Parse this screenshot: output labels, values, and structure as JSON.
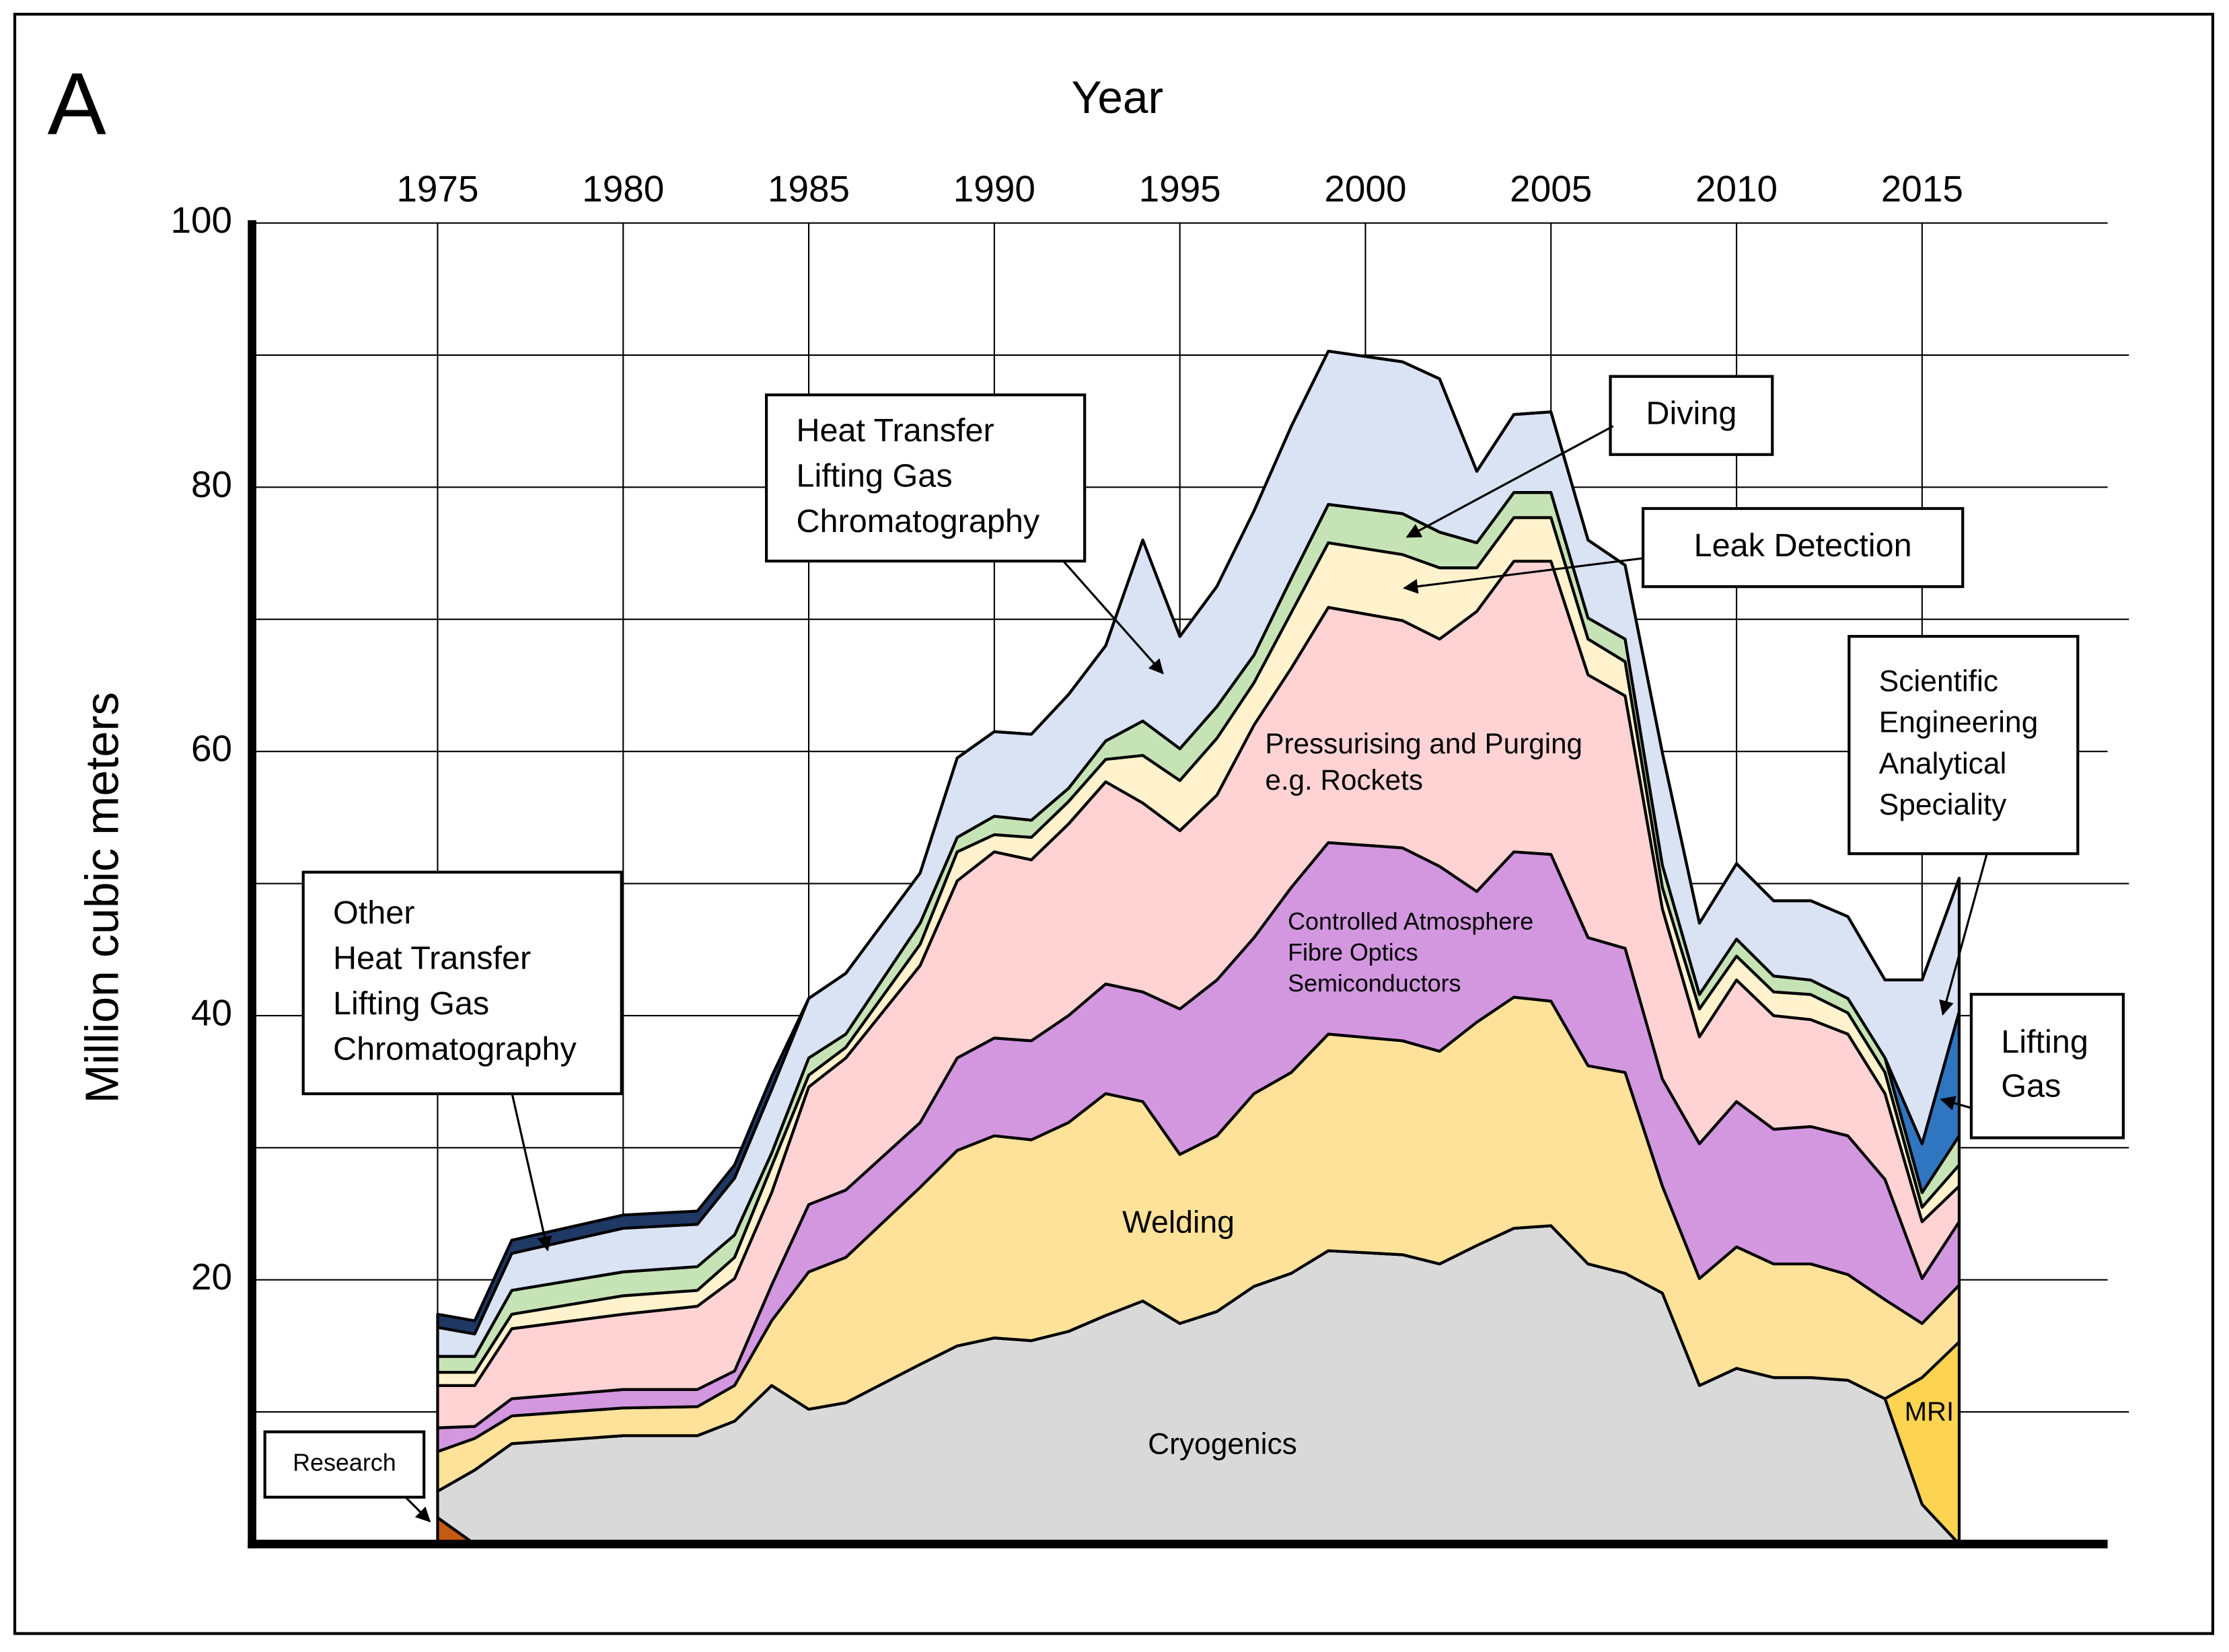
{
  "chart_data": {
    "type": "stacked_area",
    "panel_label": "A",
    "x_label": "Year",
    "y_label": "Million cubic meters",
    "x": [
      1975,
      1976,
      1977,
      1980,
      1982,
      1983,
      1984,
      1985,
      1986,
      1988,
      1989,
      1990,
      1991,
      1992,
      1993,
      1994,
      1995,
      1996,
      1997,
      1998,
      1999,
      2001,
      2002,
      2003,
      2004,
      2005,
      2006,
      2007,
      2008,
      2009,
      2010,
      2011,
      2012,
      2013,
      2014,
      2015,
      2016
    ],
    "xlim": [
      1970,
      2020
    ],
    "xticks": [
      1975,
      1980,
      1985,
      1990,
      1995,
      2000,
      2005,
      2010,
      2015
    ],
    "ylim": [
      0,
      100
    ],
    "yticks": [
      20,
      40,
      60,
      80,
      100
    ],
    "yminor_ticks": [
      10,
      30,
      50,
      70,
      90
    ],
    "grid": true,
    "series": [
      {
        "color": "#c55a11",
        "values": [
          2,
          0,
          0,
          0,
          0,
          0,
          0,
          0,
          0,
          0,
          0,
          0,
          0,
          0,
          0,
          0,
          0,
          0,
          0,
          0,
          0,
          0,
          0,
          0,
          0,
          0,
          0,
          0,
          0,
          0,
          0,
          0,
          0,
          0,
          0,
          0,
          0
        ]
      },
      {
        "color": "#d9d9d9",
        "label": [
          "Cryogenics"
        ],
        "values": [
          2,
          5.6,
          7.6,
          8.2,
          8.2,
          9.3,
          12,
          10.2,
          10.7,
          13.6,
          15,
          15.6,
          15.4,
          16.1,
          17.3,
          18.4,
          16.7,
          17.6,
          19.5,
          20.5,
          22.2,
          21.9,
          21.2,
          22.6,
          23.9,
          24.1,
          21.2,
          20.5,
          19,
          12,
          13.3,
          12.6,
          12.6,
          12.4,
          11,
          3,
          0
        ]
      },
      {
        "color": "#fcd451",
        "label": [
          "MRI"
        ],
        "values": [
          0,
          0,
          0,
          0,
          0,
          0,
          0,
          0,
          0,
          0,
          0,
          0,
          0,
          0,
          0,
          0,
          0,
          0,
          0,
          0,
          0,
          0,
          0,
          0,
          0,
          0,
          0,
          0,
          0,
          0,
          0,
          0,
          0,
          0,
          0,
          9.6,
          15.3
        ]
      },
      {
        "color": "#ffe29a",
        "label": [
          "Welding"
        ],
        "values": [
          3,
          2.4,
          2.1,
          2.1,
          2.2,
          2.7,
          4.9,
          10.4,
          11,
          13.4,
          14.8,
          15.3,
          15.2,
          15.8,
          16.8,
          15.1,
          12.8,
          13.3,
          14.6,
          15.2,
          16.4,
          16.2,
          16.1,
          16.9,
          17.5,
          17,
          15,
          15.2,
          8.1,
          8.1,
          9.2,
          8.6,
          8.6,
          8,
          7.5,
          4.1,
          4.3
        ]
      },
      {
        "color": "#d397e0",
        "label": [
          "Controlled Atmosphere",
          "Fibre Optics",
          "Semiconductors"
        ],
        "values": [
          1.8,
          0.9,
          1.3,
          1.4,
          1.3,
          1.1,
          2.7,
          5.1,
          5.1,
          4.9,
          7,
          7.4,
          7.5,
          8.1,
          8.3,
          8.3,
          11,
          11.8,
          11.8,
          14,
          14.5,
          14.6,
          14,
          9.9,
          11,
          11.1,
          9.7,
          9.4,
          8.1,
          10.2,
          11,
          10.2,
          10.4,
          10.5,
          9.1,
          3.4,
          4.8
        ]
      },
      {
        "color": "#ffd3d3",
        "label": [
          "Pressurising and Purging",
          "e.g. Rockets"
        ],
        "values": [
          3.2,
          3.1,
          5.3,
          5.7,
          6.3,
          7,
          7,
          8.9,
          10,
          11.9,
          13.4,
          14.1,
          13.7,
          14.5,
          15.3,
          14.3,
          13.5,
          14,
          16.1,
          16.6,
          17.8,
          17.2,
          17.2,
          21.2,
          22,
          22.2,
          19.9,
          19.1,
          12.9,
          8.1,
          9.2,
          8.6,
          8.1,
          7.7,
          6.5,
          4.3,
          2.7
        ]
      },
      {
        "color": "#fff2cc",
        "values": [
          1,
          1,
          1.1,
          1.4,
          1.2,
          1.6,
          2,
          0.9,
          0.8,
          1.6,
          2.2,
          1.3,
          1.7,
          1.7,
          1.7,
          3.6,
          3.8,
          4.3,
          3.2,
          4.2,
          4.9,
          5,
          5.4,
          3.3,
          3.3,
          3.3,
          2.7,
          2.6,
          1.6,
          2.1,
          1.8,
          1.8,
          1.9,
          1.6,
          1.6,
          1.1,
          1.6
        ]
      },
      {
        "color": "#c6e3b5",
        "values": [
          1.2,
          1.2,
          1.8,
          1.8,
          1.8,
          1.7,
          1,
          1.3,
          1,
          1.6,
          1.1,
          1.4,
          1.3,
          1,
          1.4,
          2.6,
          2.4,
          2.4,
          2.1,
          2.6,
          2.9,
          3.1,
          2.7,
          1.9,
          1.9,
          1.9,
          1.6,
          1.7,
          1.7,
          1.1,
          1.3,
          1.2,
          1.1,
          1.1,
          1.1,
          1.1,
          2.2
        ]
      },
      {
        "color": "#2f75c0",
        "values": [
          0,
          0,
          0,
          0,
          0,
          0,
          0,
          0,
          0,
          0,
          0,
          0,
          0,
          0,
          0,
          0,
          0,
          0,
          0,
          0,
          0,
          0,
          0,
          0,
          0,
          0,
          0,
          0,
          0,
          0,
          0,
          0,
          0,
          0,
          0,
          3.7,
          9.4
        ]
      },
      {
        "color": "#d9e3f3",
        "values": [
          2.2,
          1.7,
          2.8,
          3.3,
          3.2,
          4.3,
          4.8,
          4.5,
          4.6,
          3.8,
          6,
          6.4,
          6.5,
          7.1,
          7.2,
          13.7,
          8.5,
          9.1,
          10.9,
          11.5,
          11.6,
          11.5,
          11.6,
          5.4,
          5.9,
          6.1,
          5.9,
          5.6,
          8.5,
          5.4,
          5.7,
          5.7,
          6,
          6.2,
          5.9,
          12.4,
          10.1
        ]
      },
      {
        "color": "#1f3864",
        "values": [
          1,
          1,
          1,
          1,
          1,
          1,
          1,
          0,
          0,
          0,
          0,
          0,
          0,
          0,
          0,
          0,
          0,
          0,
          0,
          0,
          0,
          0,
          0,
          0,
          0,
          0,
          0,
          0,
          0,
          0,
          0,
          0,
          0,
          0,
          0,
          0,
          0
        ]
      }
    ],
    "annotations": [
      {
        "lines": [
          "Other",
          "Heat Transfer",
          "Lifting Gas",
          "Chromatography"
        ]
      },
      {
        "lines": [
          "Heat Transfer",
          "Lifting Gas",
          "Chromatography"
        ]
      },
      {
        "lines": [
          "Diving"
        ]
      },
      {
        "lines": [
          "Leak Detection"
        ]
      },
      {
        "lines": [
          "Scientific",
          "Engineering",
          "Analytical",
          "Speciality"
        ]
      },
      {
        "lines": [
          "Lifting",
          "Gas"
        ]
      },
      {
        "lines": [
          "Research"
        ]
      }
    ]
  }
}
